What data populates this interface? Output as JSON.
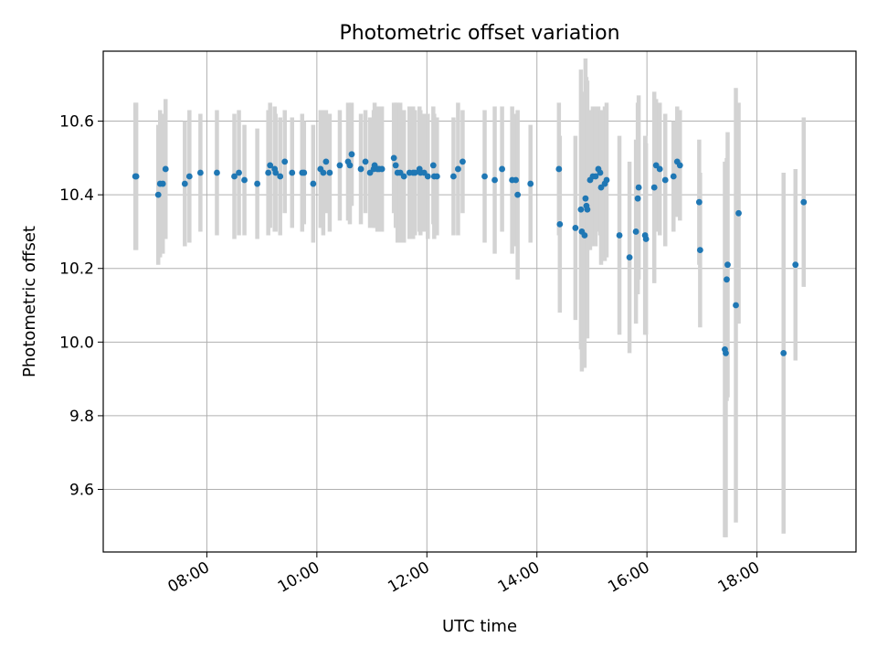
{
  "chart_data": {
    "type": "scatter",
    "title": "Photometric offset variation",
    "xlabel": "UTC time",
    "ylabel": "Photometric offset",
    "x_unit": "UTC hh:mm",
    "xlim": [
      "06:07",
      "19:48"
    ],
    "ylim": [
      9.43,
      10.79
    ],
    "x_ticks": [
      "08:00",
      "10:00",
      "12:00",
      "14:00",
      "16:00",
      "18:00"
    ],
    "y_ticks": [
      "9.6",
      "9.8",
      "10.0",
      "10.2",
      "10.4",
      "10.6"
    ],
    "grid": true,
    "legend": "none",
    "colors": {
      "point": "#1f77b4",
      "errorbar": "#d3d3d3",
      "grid": "#b0b0b0"
    },
    "series": [
      {
        "x": [
          "06:42",
          "06:43",
          "07:07",
          "07:09",
          "07:12",
          "07:15",
          "07:36",
          "07:41",
          "07:53",
          "08:11",
          "08:30",
          "08:35",
          "08:41",
          "08:55",
          "09:07",
          "09:09",
          "09:14",
          "09:15",
          "09:20",
          "09:25",
          "09:33",
          "09:44",
          "09:46",
          "09:56",
          "10:04",
          "10:07",
          "10:10",
          "10:14",
          "10:25",
          "10:34",
          "10:36",
          "10:38",
          "10:48",
          "10:53",
          "10:58",
          "11:02",
          "11:03",
          "11:06",
          "11:08",
          "11:11",
          "11:24",
          "11:26",
          "11:28",
          "11:31",
          "11:35",
          "11:41",
          "11:45",
          "11:47",
          "11:52",
          "11:53",
          "11:57",
          "12:01",
          "12:07",
          "12:08",
          "12:11",
          "12:29",
          "12:34",
          "12:39",
          "13:03",
          "13:14",
          "13:22",
          "13:33",
          "13:37",
          "13:39",
          "13:53",
          "14:24",
          "14:25",
          "14:42",
          "14:48",
          "14:49",
          "14:52",
          "14:53",
          "14:54",
          "14:55",
          "14:58",
          "15:01",
          "15:04",
          "15:07",
          "15:09",
          "15:10",
          "15:14",
          "15:16",
          "15:30",
          "15:41",
          "15:48",
          "15:50",
          "15:51",
          "15:58",
          "15:59",
          "16:08",
          "16:10",
          "16:14",
          "16:20",
          "16:29",
          "16:33",
          "16:36",
          "16:57",
          "16:58",
          "17:25",
          "17:26",
          "17:27",
          "17:28",
          "17:37",
          "17:40",
          "18:29",
          "18:42",
          "18:51"
        ],
        "y": [
          10.45,
          10.45,
          10.4,
          10.43,
          10.43,
          10.47,
          10.43,
          10.45,
          10.46,
          10.46,
          10.45,
          10.46,
          10.44,
          10.43,
          10.46,
          10.48,
          10.47,
          10.46,
          10.45,
          10.49,
          10.46,
          10.46,
          10.46,
          10.43,
          10.47,
          10.46,
          10.49,
          10.46,
          10.48,
          10.49,
          10.48,
          10.51,
          10.47,
          10.49,
          10.46,
          10.47,
          10.48,
          10.47,
          10.47,
          10.47,
          10.5,
          10.48,
          10.46,
          10.46,
          10.45,
          10.46,
          10.46,
          10.46,
          10.47,
          10.46,
          10.46,
          10.45,
          10.48,
          10.45,
          10.45,
          10.45,
          10.47,
          10.49,
          10.45,
          10.44,
          10.47,
          10.44,
          10.44,
          10.4,
          10.43,
          10.47,
          10.32,
          10.31,
          10.36,
          10.3,
          10.29,
          10.39,
          10.37,
          10.36,
          10.44,
          10.45,
          10.45,
          10.47,
          10.46,
          10.42,
          10.43,
          10.44,
          10.29,
          10.23,
          10.3,
          10.39,
          10.42,
          10.29,
          10.28,
          10.42,
          10.48,
          10.47,
          10.44,
          10.45,
          10.49,
          10.48,
          10.38,
          10.25,
          9.98,
          9.97,
          10.17,
          10.21,
          10.1,
          10.35,
          9.97,
          10.21,
          10.38
        ],
        "err": [
          0.2,
          0.2,
          0.19,
          0.2,
          0.19,
          0.19,
          0.17,
          0.18,
          0.16,
          0.17,
          0.17,
          0.17,
          0.15,
          0.15,
          0.17,
          0.17,
          0.17,
          0.16,
          0.16,
          0.14,
          0.15,
          0.16,
          0.14,
          0.16,
          0.16,
          0.17,
          0.14,
          0.16,
          0.15,
          0.16,
          0.16,
          0.14,
          0.15,
          0.14,
          0.15,
          0.16,
          0.17,
          0.17,
          0.17,
          0.17,
          0.15,
          0.17,
          0.19,
          0.19,
          0.18,
          0.18,
          0.18,
          0.17,
          0.17,
          0.17,
          0.16,
          0.17,
          0.16,
          0.17,
          0.16,
          0.16,
          0.18,
          0.14,
          0.18,
          0.2,
          0.17,
          0.2,
          0.18,
          0.23,
          0.16,
          0.18,
          0.24,
          0.25,
          0.38,
          0.38,
          0.36,
          0.38,
          0.35,
          0.35,
          0.19,
          0.19,
          0.19,
          0.17,
          0.17,
          0.21,
          0.21,
          0.21,
          0.27,
          0.26,
          0.25,
          0.26,
          0.25,
          0.27,
          0.26,
          0.26,
          0.18,
          0.18,
          0.18,
          0.15,
          0.15,
          0.15,
          0.17,
          0.21,
          0.51,
          0.5,
          0.33,
          0.36,
          0.59,
          0.3,
          0.49,
          0.26,
          0.23
        ]
      }
    ]
  }
}
